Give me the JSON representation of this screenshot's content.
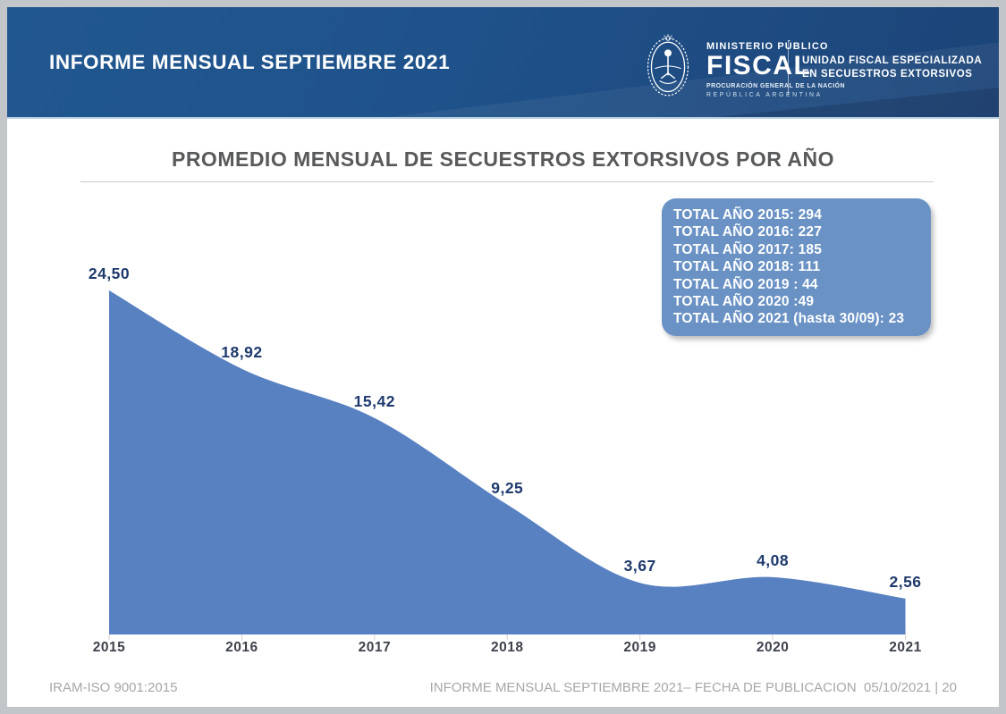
{
  "header": {
    "title": "INFORME MENSUAL SEPTIEMBRE 2021",
    "logo": {
      "ministerio": "MINISTERIO PÚBLICO",
      "fiscal": "FISCAL",
      "procuracion": "PROCURACIÓN GENERAL DE LA NACIÓN",
      "republica": "REPÚBLICA ARGENTINA",
      "unit_line1": "UNIDAD FISCAL ESPECIALIZADA",
      "unit_line2": "EN SECUESTROS EXTORSIVOS"
    },
    "banner_color_left": "#215790",
    "banner_color_right": "#1c4478"
  },
  "chart_data": {
    "type": "area",
    "title": "PROMEDIO MENSUAL DE SECUESTROS EXTORSIVOS POR AÑO",
    "categories": [
      "2015",
      "2016",
      "2017",
      "2018",
      "2019",
      "2020",
      "2021"
    ],
    "values": [
      24.5,
      18.92,
      15.42,
      9.25,
      3.67,
      4.08,
      2.56
    ],
    "value_labels": [
      "24,50",
      "18,92",
      "15,42",
      "9,25",
      "3,67",
      "4,08",
      "2,56"
    ],
    "xlabel": "",
    "ylabel": "",
    "ylim": [
      0,
      26
    ],
    "grid": false,
    "legend": "none",
    "smooth": true,
    "fill_color": "#5881c1",
    "value_label_color": "#1e3a6d",
    "axis_label_color": "#3e424b",
    "tick_color": "#d2d2d2",
    "annotations": [
      "TOTAL AÑO 2015: 294",
      "TOTAL AÑO 2016: 227",
      "TOTAL AÑO 2017: 185",
      "TOTAL AÑO 2018: 111",
      "TOTAL AÑO 2019 : 44",
      "TOTAL AÑO 2020 :49",
      "TOTAL AÑO 2021 (hasta 30/09): 23"
    ],
    "annotation_box_color": "#6a92c5"
  },
  "footer": {
    "left": "IRAM-ISO 9001:2015",
    "right": "INFORME MENSUAL SEPTIEMBRE 2021– FECHA DE PUBLICACION  05/10/2021 | 20"
  }
}
